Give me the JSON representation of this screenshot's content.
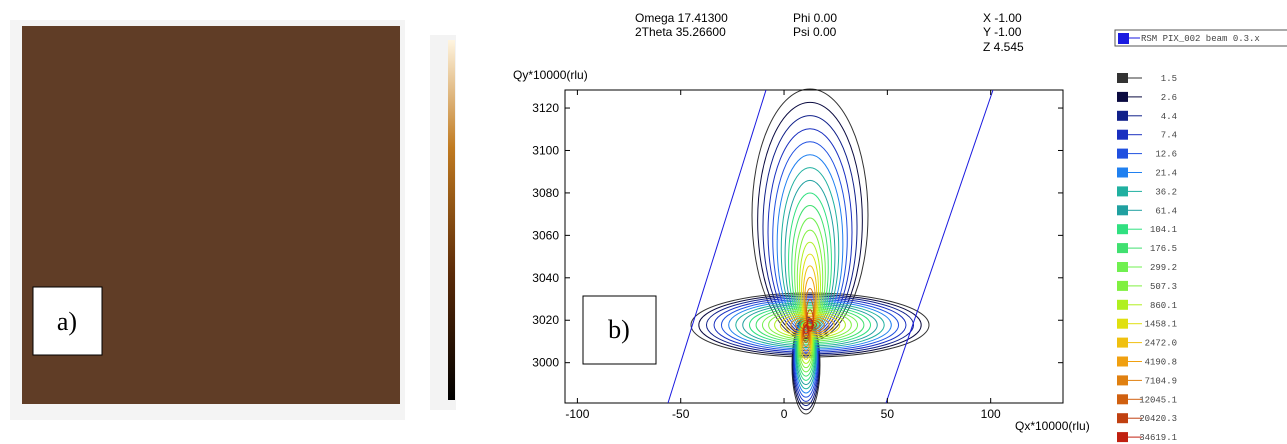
{
  "image_label": "a)",
  "chart_data": {
    "type": "contour",
    "panel_label": "b)",
    "annotations": [
      "Omega 17.41300",
      "2Theta 35.26600",
      "Phi 0.00",
      "Psi 0.00",
      "X -1.00",
      "Y -1.00",
      "Z 4.545"
    ],
    "ylabel": "Qy*10000(rlu)",
    "xlabel": "Qx*10000(rlu)",
    "xlim": [
      -106,
      135
    ],
    "ylim": [
      2981,
      3128.5
    ],
    "xticks": [
      -100,
      -50,
      0,
      50,
      100
    ],
    "yticks": [
      3000,
      3020,
      3040,
      3060,
      3080,
      3100,
      3120
    ],
    "series": [
      {
        "name": "RSM PIX_002 beam 0.3.x",
        "levels": [
          1.5,
          2.6,
          4.4,
          7.4,
          12.6,
          21.4,
          36.2,
          61.4,
          104.1,
          176.5,
          299.2,
          507.3,
          860.1,
          1458.1,
          2472.0,
          4190.8,
          7104.9,
          12045.1,
          20420.3,
          34619.1
        ],
        "value_labels": [
          "1.5",
          "2.6",
          "4.4",
          "7.4",
          "12.6",
          "21.4",
          "36.2",
          "61.4",
          "104.1",
          "176.5",
          "299.2",
          "507.3",
          "860.1",
          "1458.1",
          "2472.0",
          "4190.8",
          "7104.9",
          "12045.1",
          "20420.3",
          "34619.1"
        ],
        "colors": [
          "#333333",
          "#0a0a40",
          "#10208a",
          "#1a30c0",
          "#2050e0",
          "#2080f0",
          "#20b0a0",
          "#20a0a0",
          "#30e080",
          "#40e070",
          "#70f050",
          "#80f040",
          "#b0f020",
          "#e0e010",
          "#f0c010",
          "#f0a010",
          "#e08010",
          "#d06010",
          "#c04010",
          "#c02010"
        ]
      }
    ]
  }
}
